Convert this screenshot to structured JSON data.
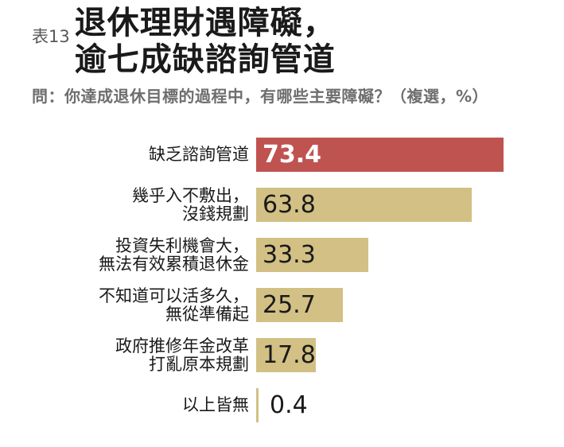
{
  "header": {
    "table_label": "表13",
    "title_line1": "退休理財遇障礙，",
    "title_line2": "逾七成缺諮詢管道",
    "question": "問：你達成退休目標的過程中，有哪些主要障礙？（複選，%）"
  },
  "colors": {
    "highlight_bar": "#BF5350",
    "default_bar": "#D2C084",
    "title_text": "#1A1A1A",
    "table_label_text": "#58595B",
    "question_text": "#6D6E70",
    "value_on_highlight": "#FFFFFF",
    "value_default": "#1A1A1A"
  },
  "chart_data": {
    "type": "bar",
    "orientation": "horizontal",
    "title": "表13 退休理財遇障礙，逾七成缺諮詢管道",
    "subtitle": "問：你達成退休目標的過程中，有哪些主要障礙？（複選，%）",
    "unit": "%",
    "xlim": [
      0,
      91
    ],
    "grid": false,
    "legend": false,
    "bars": [
      {
        "label_lines": [
          "缺乏諮詢管道"
        ],
        "value": 73.4,
        "color": "#BF5350",
        "value_color": "#FFFFFF",
        "value_bold": true,
        "value_position": "inside",
        "highlight": true
      },
      {
        "label_lines": [
          "幾乎入不敷出，",
          "沒錢規劃"
        ],
        "value": 63.8,
        "color": "#D2C084",
        "value_color": "#1A1A1A",
        "value_bold": false,
        "value_position": "inside",
        "highlight": false
      },
      {
        "label_lines": [
          "投資失利機會大，",
          "無法有效累積退休金"
        ],
        "value": 33.3,
        "color": "#D2C084",
        "value_color": "#1A1A1A",
        "value_bold": false,
        "value_position": "inside",
        "highlight": false
      },
      {
        "label_lines": [
          "不知道可以活多久，",
          "無從準備起"
        ],
        "value": 25.7,
        "color": "#D2C084",
        "value_color": "#1A1A1A",
        "value_bold": false,
        "value_position": "inside",
        "highlight": false
      },
      {
        "label_lines": [
          "政府推修年金改革",
          "打亂原本規劃"
        ],
        "value": 17.8,
        "color": "#D2C084",
        "value_color": "#1A1A1A",
        "value_bold": false,
        "value_position": "inside",
        "highlight": false
      },
      {
        "label_lines": [
          "以上皆無"
        ],
        "value": 0.4,
        "color": "#D2C084",
        "value_color": "#1A1A1A",
        "value_bold": false,
        "value_position": "outside",
        "highlight": false
      }
    ]
  }
}
